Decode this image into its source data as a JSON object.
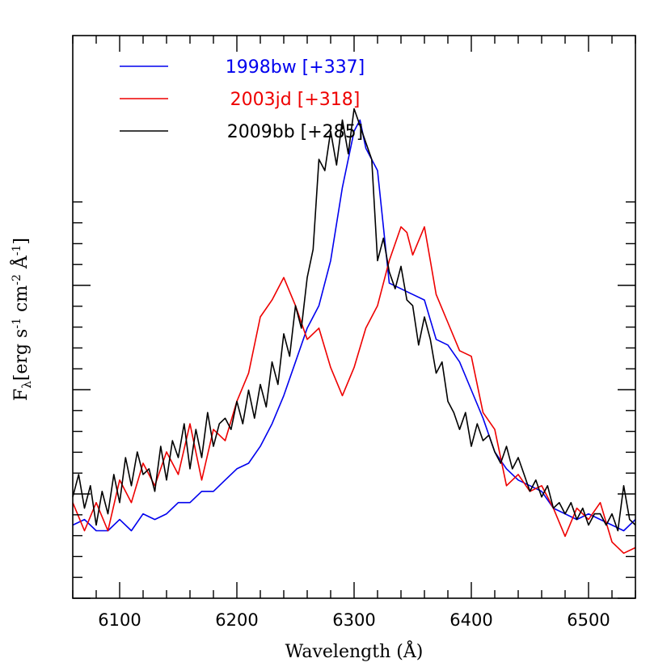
{
  "chart_data": {
    "type": "line",
    "xlabel": "Wavelength (Å)",
    "ylabel_parts": {
      "base": "F",
      "sub": "λ",
      "a": "[erg s",
      "sup1": "-1",
      "b": " cm",
      "sup2": "-2",
      "c": " Å",
      "sup3": "-1",
      "d": "]"
    },
    "xlim": [
      6060,
      6540
    ],
    "ylim": [
      0.0,
      1.0
    ],
    "x_ticks": [
      "6100",
      "6200",
      "6300",
      "6400",
      "6500"
    ],
    "grid": false,
    "legend_position": "top-left",
    "series": [
      {
        "name": "1998bw [+337]",
        "color": "#0000ee",
        "x": [
          6060,
          6070,
          6080,
          6090,
          6100,
          6110,
          6120,
          6130,
          6140,
          6150,
          6160,
          6170,
          6180,
          6190,
          6200,
          6210,
          6220,
          6230,
          6240,
          6250,
          6260,
          6270,
          6280,
          6290,
          6300,
          6305,
          6310,
          6320,
          6330,
          6340,
          6350,
          6360,
          6370,
          6380,
          6390,
          6400,
          6410,
          6420,
          6430,
          6440,
          6450,
          6460,
          6470,
          6480,
          6490,
          6500,
          6510,
          6520,
          6530,
          6540
        ],
        "y": [
          0.13,
          0.14,
          0.12,
          0.12,
          0.14,
          0.12,
          0.15,
          0.14,
          0.15,
          0.17,
          0.17,
          0.19,
          0.19,
          0.21,
          0.23,
          0.24,
          0.27,
          0.31,
          0.36,
          0.42,
          0.48,
          0.52,
          0.6,
          0.73,
          0.83,
          0.85,
          0.8,
          0.76,
          0.56,
          0.55,
          0.54,
          0.53,
          0.46,
          0.45,
          0.42,
          0.37,
          0.32,
          0.26,
          0.23,
          0.21,
          0.2,
          0.19,
          0.16,
          0.15,
          0.14,
          0.15,
          0.14,
          0.13,
          0.12,
          0.14
        ]
      },
      {
        "name": "2003jd [+318]",
        "color": "#ee0000",
        "x": [
          6060,
          6070,
          6080,
          6090,
          6100,
          6110,
          6120,
          6130,
          6140,
          6150,
          6160,
          6170,
          6180,
          6190,
          6200,
          6210,
          6220,
          6230,
          6240,
          6250,
          6260,
          6270,
          6280,
          6290,
          6300,
          6310,
          6320,
          6330,
          6340,
          6345,
          6350,
          6360,
          6365,
          6370,
          6380,
          6390,
          6400,
          6410,
          6420,
          6430,
          6440,
          6450,
          6460,
          6470,
          6480,
          6490,
          6500,
          6510,
          6520,
          6530,
          6540
        ],
        "y": [
          0.17,
          0.12,
          0.17,
          0.12,
          0.21,
          0.17,
          0.24,
          0.2,
          0.26,
          0.22,
          0.31,
          0.21,
          0.3,
          0.28,
          0.35,
          0.4,
          0.5,
          0.53,
          0.57,
          0.52,
          0.46,
          0.48,
          0.41,
          0.36,
          0.41,
          0.48,
          0.52,
          0.6,
          0.66,
          0.65,
          0.61,
          0.66,
          0.6,
          0.54,
          0.49,
          0.44,
          0.43,
          0.33,
          0.3,
          0.2,
          0.22,
          0.19,
          0.2,
          0.16,
          0.11,
          0.16,
          0.14,
          0.17,
          0.1,
          0.08,
          0.09
        ]
      },
      {
        "name": "2009bb [+285]",
        "color": "#000000",
        "x": [
          6060,
          6065,
          6070,
          6075,
          6080,
          6085,
          6090,
          6095,
          6100,
          6105,
          6110,
          6115,
          6120,
          6125,
          6130,
          6135,
          6140,
          6145,
          6150,
          6155,
          6160,
          6165,
          6170,
          6175,
          6180,
          6185,
          6190,
          6195,
          6200,
          6205,
          6210,
          6215,
          6220,
          6225,
          6230,
          6235,
          6240,
          6245,
          6250,
          6255,
          6260,
          6265,
          6270,
          6275,
          6280,
          6285,
          6290,
          6295,
          6300,
          6305,
          6310,
          6315,
          6320,
          6325,
          6330,
          6335,
          6340,
          6345,
          6350,
          6355,
          6360,
          6365,
          6370,
          6375,
          6380,
          6385,
          6390,
          6395,
          6400,
          6405,
          6410,
          6415,
          6420,
          6425,
          6430,
          6435,
          6440,
          6445,
          6450,
          6455,
          6460,
          6465,
          6470,
          6475,
          6480,
          6485,
          6490,
          6495,
          6500,
          6505,
          6510,
          6515,
          6520,
          6525,
          6530,
          6535,
          6540
        ],
        "y": [
          0.18,
          0.22,
          0.16,
          0.2,
          0.13,
          0.19,
          0.15,
          0.22,
          0.17,
          0.25,
          0.2,
          0.26,
          0.22,
          0.23,
          0.19,
          0.27,
          0.21,
          0.28,
          0.25,
          0.31,
          0.23,
          0.3,
          0.25,
          0.33,
          0.27,
          0.31,
          0.32,
          0.3,
          0.35,
          0.31,
          0.37,
          0.32,
          0.38,
          0.34,
          0.42,
          0.38,
          0.47,
          0.43,
          0.52,
          0.48,
          0.57,
          0.62,
          0.78,
          0.76,
          0.83,
          0.77,
          0.85,
          0.79,
          0.87,
          0.84,
          0.81,
          0.78,
          0.6,
          0.64,
          0.58,
          0.55,
          0.59,
          0.53,
          0.52,
          0.45,
          0.5,
          0.46,
          0.4,
          0.42,
          0.35,
          0.33,
          0.3,
          0.33,
          0.27,
          0.31,
          0.28,
          0.29,
          0.26,
          0.24,
          0.27,
          0.23,
          0.25,
          0.22,
          0.19,
          0.21,
          0.18,
          0.2,
          0.16,
          0.17,
          0.15,
          0.17,
          0.14,
          0.16,
          0.13,
          0.15,
          0.15,
          0.13,
          0.15,
          0.12,
          0.2,
          0.14,
          0.13
        ]
      }
    ]
  }
}
